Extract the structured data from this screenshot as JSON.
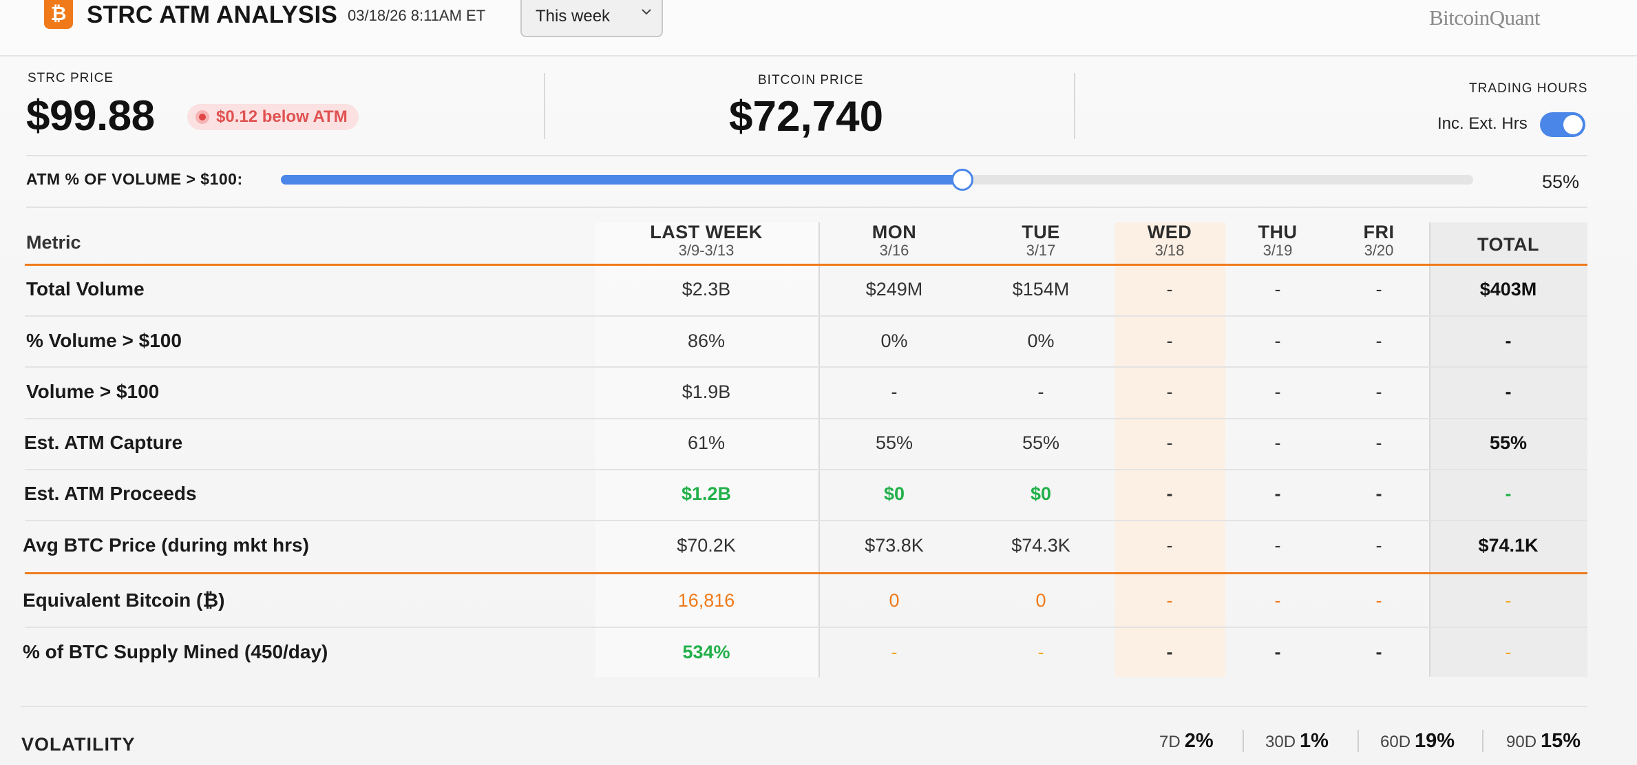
{
  "header": {
    "logo_glyph": "₿",
    "title": "STRC ATM ANALYSIS",
    "timestamp": "03/18/26 8:11AM ET",
    "range_selected": "This week",
    "brand": "BitcoinQuant"
  },
  "prices": {
    "strc_label": "STRC PRICE",
    "strc_price": "$99.88",
    "atm_badge": "$0.12 below ATM",
    "btc_label": "BITCOIN PRICE",
    "btc_price": "$72,740",
    "trading_hours_label": "TRADING HOURS",
    "ext_hours_label": "Inc. Ext. Hrs",
    "ext_hours_on": true
  },
  "slider": {
    "label": "ATM % OF VOLUME > $100:",
    "value_text": "55%",
    "value": 0.55
  },
  "table": {
    "metric_header": "Metric",
    "columns": [
      {
        "top": "LAST WEEK",
        "sub": "3/9-3/13"
      },
      {
        "top": "MON",
        "sub": "3/16"
      },
      {
        "top": "TUE",
        "sub": "3/17"
      },
      {
        "top": "WED",
        "sub": "3/18"
      },
      {
        "top": "THU",
        "sub": "3/19"
      },
      {
        "top": "FRI",
        "sub": "3/20"
      },
      {
        "top": "TOTAL",
        "sub": ""
      }
    ],
    "rows": [
      {
        "label": "Total Volume",
        "cells": [
          "$2.3B",
          "$249M",
          "$154M",
          "-",
          "-",
          "-",
          "$403M"
        ]
      },
      {
        "label": "% Volume > $100",
        "cells": [
          "86%",
          "0%",
          "0%",
          "-",
          "-",
          "-",
          "-"
        ]
      },
      {
        "label": "Volume > $100",
        "cells": [
          "$1.9B",
          "-",
          "-",
          "-",
          "-",
          "-",
          "-"
        ]
      },
      {
        "label": "Est. ATM Capture",
        "cells": [
          "61%",
          "55%",
          "55%",
          "-",
          "-",
          "-",
          "55%"
        ]
      },
      {
        "label": "Est. ATM Proceeds",
        "cells": [
          "$1.2B",
          "$0",
          "$0",
          "-",
          "-",
          "-",
          "-"
        ]
      },
      {
        "label": "Avg BTC Price (during mkt hrs)",
        "cells": [
          "$70.2K",
          "$73.8K",
          "$74.3K",
          "-",
          "-",
          "-",
          "$74.1K"
        ]
      },
      {
        "label": "Equivalent Bitcoin (₿)",
        "cells": [
          "16,816",
          "0",
          "0",
          "-",
          "-",
          "-",
          "-"
        ]
      },
      {
        "label": "% of BTC Supply Mined (450/day)",
        "cells": [
          "534%",
          "-",
          "-",
          "-",
          "-",
          "-",
          "-"
        ]
      }
    ]
  },
  "volatility": {
    "title": "VOLATILITY",
    "items": [
      {
        "period": "7D",
        "value": "2%"
      },
      {
        "period": "30D",
        "value": "1%"
      },
      {
        "period": "60D",
        "value": "19%"
      },
      {
        "period": "90D",
        "value": "15%"
      }
    ]
  },
  "colors": {
    "accent_blue": "#4a86e8",
    "orange": "#f07a1a",
    "green": "#22b04a",
    "yellow": "#f0a820",
    "badge_red": "#e05252"
  }
}
